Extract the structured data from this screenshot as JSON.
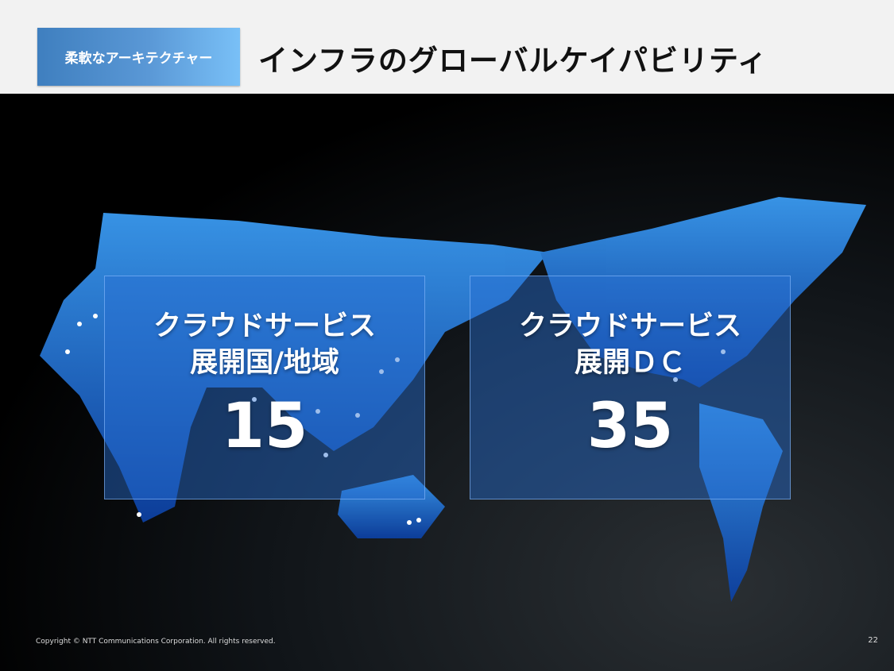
{
  "header": {
    "tag": "柔軟なアーキテクチャー",
    "title": "インフラのグローバルケイパビリティ"
  },
  "stats": [
    {
      "label_line1": "クラウドサービス",
      "label_line2": "展開国/地域",
      "value": "15"
    },
    {
      "label_line1": "クラウドサービス",
      "label_line2": "展開ＤＣ",
      "value": "35"
    }
  ],
  "footer": {
    "copyright": "Copyright © NTT Communications Corporation. All rights reserved.",
    "page_number": "22"
  },
  "colors": {
    "accent": "#1e73d8",
    "background": "#000000"
  }
}
